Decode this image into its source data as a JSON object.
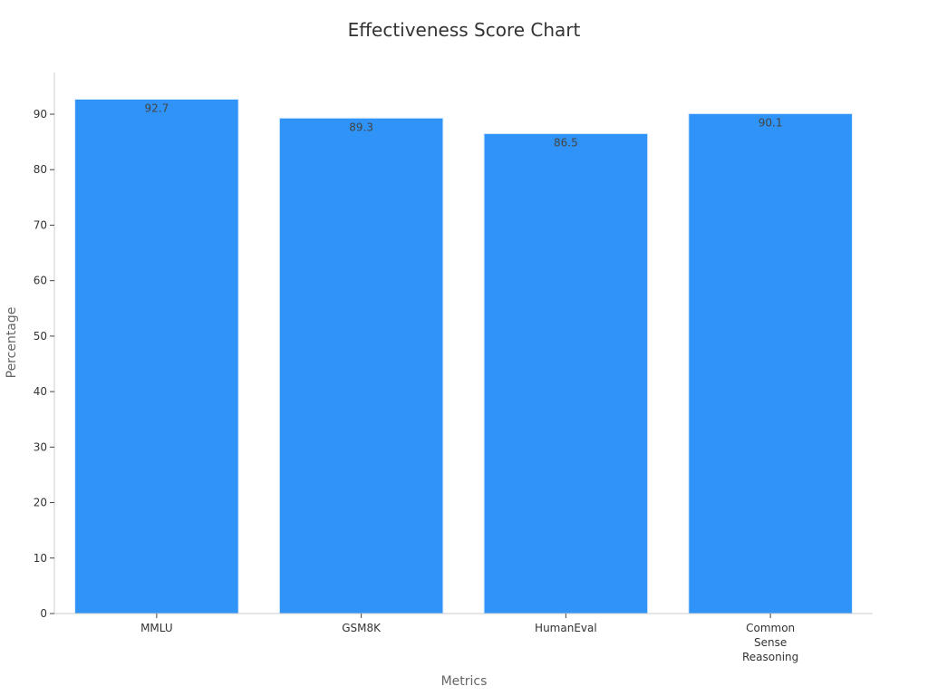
{
  "chart_data": {
    "type": "bar",
    "title": "Effectiveness Score Chart",
    "xlabel": "Metrics",
    "ylabel": "Percentage",
    "categories": [
      [
        "MMLU"
      ],
      [
        "GSM8K"
      ],
      [
        "HumanEval"
      ],
      [
        "Common",
        "Sense",
        "Reasoning"
      ]
    ],
    "values": [
      92.7,
      89.3,
      86.5,
      90.1
    ],
    "ylim": [
      0,
      97.5
    ],
    "yticks": [
      0,
      10,
      20,
      30,
      40,
      50,
      60,
      70,
      80,
      90
    ],
    "bar_color": "#2f93f8",
    "grid": false,
    "legend": "none"
  }
}
